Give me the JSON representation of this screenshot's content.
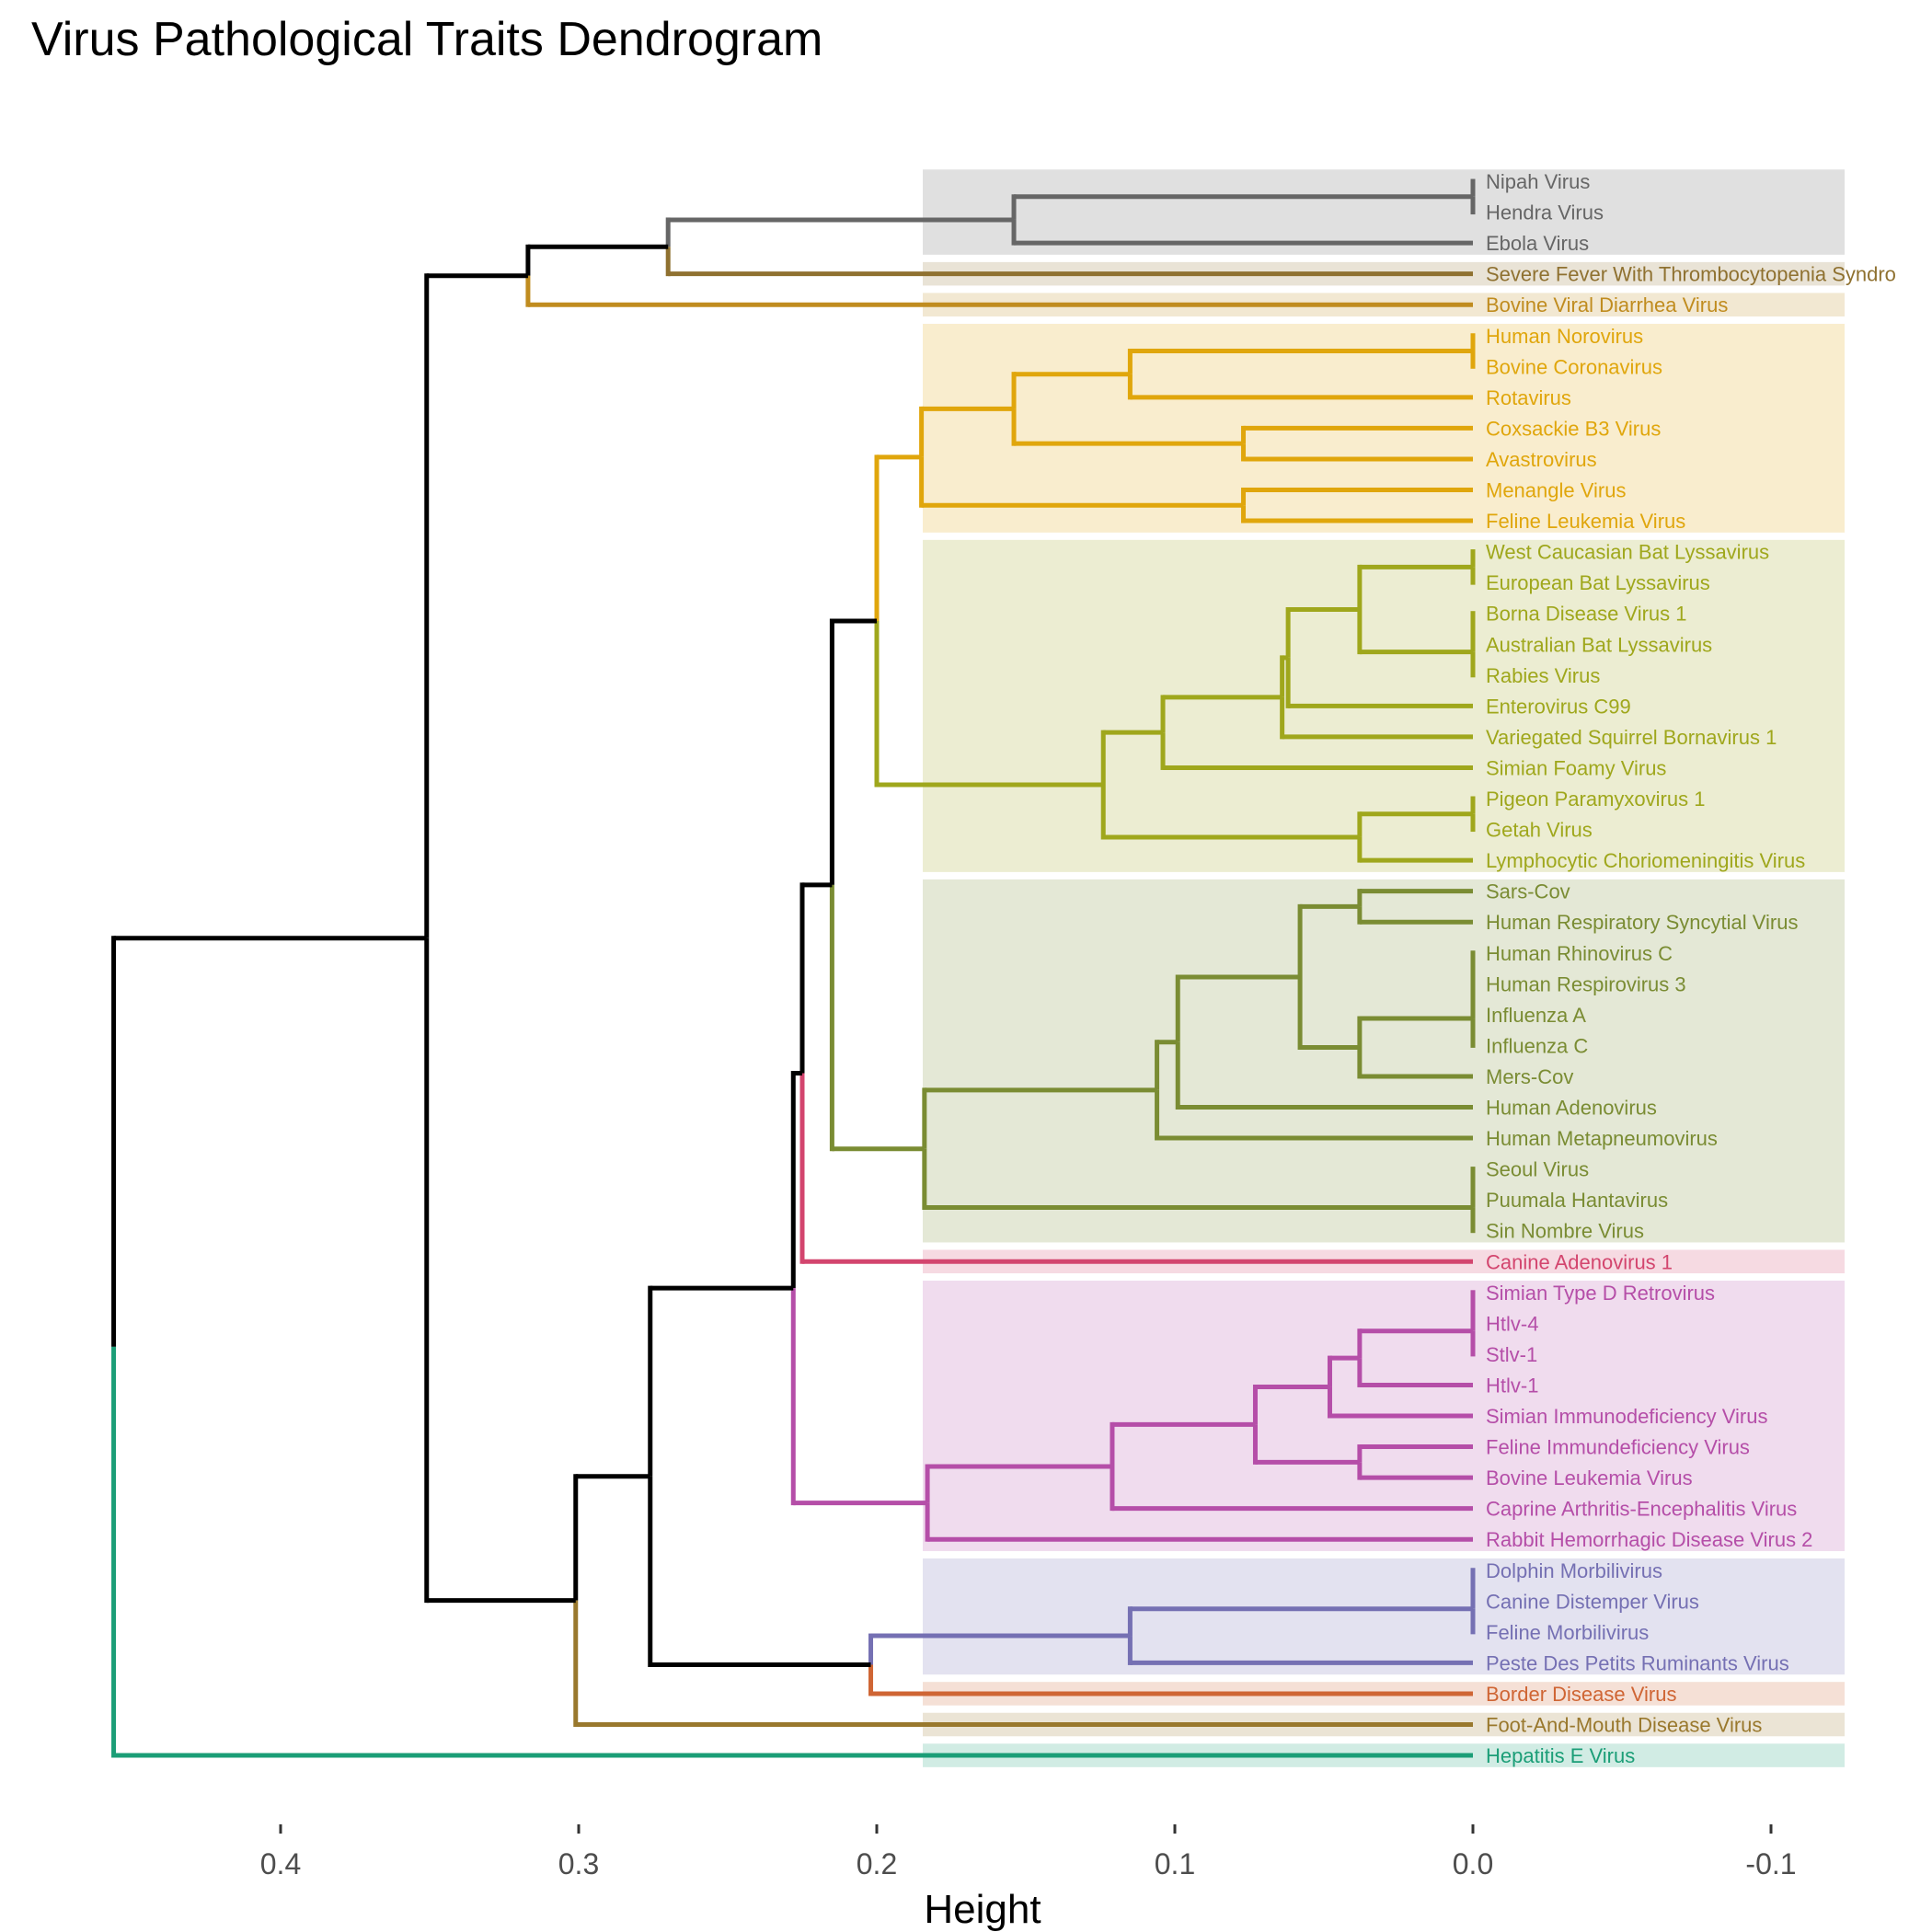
{
  "chart_data": {
    "type": "dendrogram",
    "title": "Virus Pathological Traits Dendrogram",
    "xlabel": "Height",
    "xlim": [
      0.45,
      -0.125
    ],
    "x_ticks": [
      0.4,
      0.3,
      0.2,
      0.1,
      0.0,
      -0.1
    ],
    "x_tick_labels": [
      "0.4",
      "0.3",
      "0.2",
      "0.1",
      "0.0",
      "-0.1"
    ],
    "leaves": [
      {
        "label": "Nipah Virus",
        "cluster": 0
      },
      {
        "label": "Hendra Virus",
        "cluster": 0
      },
      {
        "label": "Ebola Virus",
        "cluster": 0
      },
      {
        "label": "Severe Fever With Thrombocytopenia Syndro",
        "cluster": 1
      },
      {
        "label": "Bovine Viral Diarrhea Virus",
        "cluster": 2
      },
      {
        "label": "Human Norovirus",
        "cluster": 3
      },
      {
        "label": "Bovine Coronavirus",
        "cluster": 3
      },
      {
        "label": "Rotavirus",
        "cluster": 3
      },
      {
        "label": "Coxsackie B3 Virus",
        "cluster": 3
      },
      {
        "label": "Avastrovirus",
        "cluster": 3
      },
      {
        "label": "Menangle Virus",
        "cluster": 3
      },
      {
        "label": "Feline Leukemia Virus",
        "cluster": 3
      },
      {
        "label": "West Caucasian Bat Lyssavirus",
        "cluster": 4
      },
      {
        "label": "European Bat Lyssavirus",
        "cluster": 4
      },
      {
        "label": "Borna Disease Virus 1",
        "cluster": 4
      },
      {
        "label": "Australian Bat Lyssavirus",
        "cluster": 4
      },
      {
        "label": "Rabies Virus",
        "cluster": 4
      },
      {
        "label": "Enterovirus C99",
        "cluster": 4
      },
      {
        "label": "Variegated Squirrel Bornavirus 1",
        "cluster": 4
      },
      {
        "label": "Simian Foamy Virus",
        "cluster": 4
      },
      {
        "label": "Pigeon Paramyxovirus 1",
        "cluster": 4
      },
      {
        "label": "Getah Virus",
        "cluster": 4
      },
      {
        "label": "Lymphocytic Choriomeningitis Virus",
        "cluster": 4
      },
      {
        "label": "Sars-Cov",
        "cluster": 5
      },
      {
        "label": "Human Respiratory Syncytial Virus",
        "cluster": 5
      },
      {
        "label": "Human Rhinovirus C",
        "cluster": 5
      },
      {
        "label": "Human Respirovirus 3",
        "cluster": 5
      },
      {
        "label": "Influenza A",
        "cluster": 5
      },
      {
        "label": "Influenza C",
        "cluster": 5
      },
      {
        "label": "Mers-Cov",
        "cluster": 5
      },
      {
        "label": "Human Adenovirus",
        "cluster": 5
      },
      {
        "label": "Human Metapneumovirus",
        "cluster": 5
      },
      {
        "label": "Seoul Virus",
        "cluster": 5
      },
      {
        "label": "Puumala Hantavirus",
        "cluster": 5
      },
      {
        "label": "Sin Nombre Virus",
        "cluster": 5
      },
      {
        "label": "Canine Adenovirus 1",
        "cluster": 6
      },
      {
        "label": "Simian Type D Retrovirus",
        "cluster": 7
      },
      {
        "label": "Htlv-4",
        "cluster": 7
      },
      {
        "label": "Stlv-1",
        "cluster": 7
      },
      {
        "label": "Htlv-1",
        "cluster": 7
      },
      {
        "label": "Simian Immunodeficiency Virus",
        "cluster": 7
      },
      {
        "label": "Feline Immundeficiency Virus",
        "cluster": 7
      },
      {
        "label": "Bovine Leukemia Virus",
        "cluster": 7
      },
      {
        "label": "Caprine Arthritis-Encephalitis Virus",
        "cluster": 7
      },
      {
        "label": "Rabbit Hemorrhagic Disease Virus 2",
        "cluster": 7
      },
      {
        "label": "Dolphin Morbilivirus",
        "cluster": 8
      },
      {
        "label": "Canine Distemper Virus",
        "cluster": 8
      },
      {
        "label": "Feline Morbilivirus",
        "cluster": 8
      },
      {
        "label": "Peste Des Petits Ruminants Virus",
        "cluster": 8
      },
      {
        "label": "Border Disease Virus",
        "cluster": 9
      },
      {
        "label": "Foot-And-Mouth Disease Virus",
        "cluster": 10
      },
      {
        "label": "Hepatitis E Virus",
        "cluster": 11
      }
    ],
    "clusters": [
      {
        "color": "#666666",
        "first": 0,
        "last": 2
      },
      {
        "color": "#8F7130",
        "first": 3,
        "last": 3
      },
      {
        "color": "#C08C1F",
        "first": 4,
        "last": 4
      },
      {
        "color": "#E0A60C",
        "first": 5,
        "last": 11
      },
      {
        "color": "#9FA71C",
        "first": 12,
        "last": 22
      },
      {
        "color": "#7A8C33",
        "first": 23,
        "last": 34
      },
      {
        "color": "#D3456E",
        "first": 35,
        "last": 35
      },
      {
        "color": "#B54EA8",
        "first": 36,
        "last": 44
      },
      {
        "color": "#7570B3",
        "first": 45,
        "last": 48
      },
      {
        "color": "#CF6534",
        "first": 49,
        "last": 49
      },
      {
        "color": "#99782D",
        "first": 50,
        "last": 50
      },
      {
        "color": "#1B9E77",
        "first": 51,
        "last": 51
      }
    ],
    "merges": [
      {
        "a": "L0",
        "b": "L1",
        "h": 0.0,
        "color": "#666666"
      },
      {
        "a": "m0",
        "b": "L2",
        "h": 0.154,
        "color": "#666666"
      },
      {
        "a": "m1",
        "b": "L3",
        "h": 0.27,
        "color": "#666666",
        "colorB": "#8F7130"
      },
      {
        "a": "m2",
        "b": "L4",
        "h": 0.317,
        "color": "#000000",
        "colorA": "#000000",
        "colorB": "#C08C1F"
      },
      {
        "a": "L5",
        "b": "L6",
        "h": 0.0,
        "color": "#E0A60C"
      },
      {
        "a": "m4",
        "b": "L7",
        "h": 0.115,
        "color": "#E0A60C"
      },
      {
        "a": "L8",
        "b": "L9",
        "h": 0.077,
        "color": "#E0A60C"
      },
      {
        "a": "m5",
        "b": "m6",
        "h": 0.154,
        "color": "#E0A60C"
      },
      {
        "a": "L10",
        "b": "L11",
        "h": 0.077,
        "color": "#E0A60C"
      },
      {
        "a": "m7",
        "b": "m8",
        "h": 0.185,
        "color": "#E0A60C"
      },
      {
        "a": "L12",
        "b": "L13",
        "h": 0.0,
        "color": "#9FA71C"
      },
      {
        "a": "L14",
        "b": "L15",
        "h": 0.0,
        "color": "#9FA71C"
      },
      {
        "a": "m11",
        "b": "L16",
        "h": 0.0,
        "color": "#9FA71C"
      },
      {
        "a": "m10",
        "b": "m12",
        "h": 0.038,
        "color": "#9FA71C"
      },
      {
        "a": "m13",
        "b": "L17",
        "h": 0.062,
        "color": "#9FA71C"
      },
      {
        "a": "m14",
        "b": "L18",
        "h": 0.064,
        "color": "#9FA71C"
      },
      {
        "a": "m15",
        "b": "L19",
        "h": 0.104,
        "color": "#9FA71C"
      },
      {
        "a": "L20",
        "b": "L21",
        "h": 0.0,
        "color": "#9FA71C"
      },
      {
        "a": "m17",
        "b": "L22",
        "h": 0.038,
        "color": "#9FA71C"
      },
      {
        "a": "m16",
        "b": "m18",
        "h": 0.124,
        "color": "#9FA71C"
      },
      {
        "a": "m9",
        "b": "m19",
        "h": 0.2,
        "color": "#E0A60C",
        "colorB": "#9FA71C"
      },
      {
        "a": "L23",
        "b": "L24",
        "h": 0.038,
        "color": "#7A8C33"
      },
      {
        "a": "L25",
        "b": "L26",
        "h": 0.0,
        "color": "#7A8C33"
      },
      {
        "a": "m22",
        "b": "L27",
        "h": 0.0,
        "color": "#7A8C33"
      },
      {
        "a": "m23",
        "b": "L28",
        "h": 0.0,
        "color": "#7A8C33"
      },
      {
        "a": "m24",
        "b": "L29",
        "h": 0.038,
        "color": "#7A8C33"
      },
      {
        "a": "m21",
        "b": "m25",
        "h": 0.058,
        "color": "#7A8C33"
      },
      {
        "a": "m26",
        "b": "L30",
        "h": 0.099,
        "color": "#7A8C33"
      },
      {
        "a": "m27",
        "b": "L31",
        "h": 0.106,
        "color": "#7A8C33"
      },
      {
        "a": "L32",
        "b": "L33",
        "h": 0.0,
        "color": "#7A8C33"
      },
      {
        "a": "m29",
        "b": "L34",
        "h": 0.0,
        "color": "#7A8C33"
      },
      {
        "a": "m28",
        "b": "m30",
        "h": 0.184,
        "color": "#7A8C33"
      },
      {
        "a": "m20",
        "b": "m31",
        "h": 0.215,
        "color": "#000000",
        "colorB": "#7A8C33"
      },
      {
        "a": "m32",
        "b": "L35",
        "h": 0.225,
        "color": "#000000",
        "colorB": "#D3456E"
      },
      {
        "a": "L36",
        "b": "L37",
        "h": 0.0,
        "color": "#B54EA8"
      },
      {
        "a": "m34",
        "b": "L38",
        "h": 0.0,
        "color": "#B54EA8"
      },
      {
        "a": "m35",
        "b": "L39",
        "h": 0.038,
        "color": "#B54EA8"
      },
      {
        "a": "m36",
        "b": "L40",
        "h": 0.048,
        "color": "#B54EA8"
      },
      {
        "a": "L41",
        "b": "L42",
        "h": 0.038,
        "color": "#B54EA8"
      },
      {
        "a": "m37",
        "b": "m38",
        "h": 0.073,
        "color": "#B54EA8"
      },
      {
        "a": "m39",
        "b": "L43",
        "h": 0.121,
        "color": "#B54EA8"
      },
      {
        "a": "m40",
        "b": "L44",
        "h": 0.183,
        "color": "#B54EA8"
      },
      {
        "a": "m33",
        "b": "m41",
        "h": 0.228,
        "color": "#000000",
        "colorB": "#B54EA8"
      },
      {
        "a": "L45",
        "b": "L46",
        "h": 0.0,
        "color": "#7570B3"
      },
      {
        "a": "m43",
        "b": "L47",
        "h": 0.0,
        "color": "#7570B3"
      },
      {
        "a": "m44",
        "b": "L48",
        "h": 0.115,
        "color": "#7570B3"
      },
      {
        "a": "m45",
        "b": "L49",
        "h": 0.202,
        "color": "#7570B3",
        "colorB": "#CF6534"
      },
      {
        "a": "m42",
        "b": "m46",
        "h": 0.276,
        "color": "#000000"
      },
      {
        "a": "m47",
        "b": "L50",
        "h": 0.301,
        "color": "#000000",
        "colorB": "#99782D"
      },
      {
        "a": "m3",
        "b": "m48",
        "h": 0.351,
        "color": "#000000"
      },
      {
        "a": "m49",
        "b": "L51",
        "h": 0.456,
        "color": "#000000",
        "colorB": "#1B9E77"
      }
    ]
  }
}
